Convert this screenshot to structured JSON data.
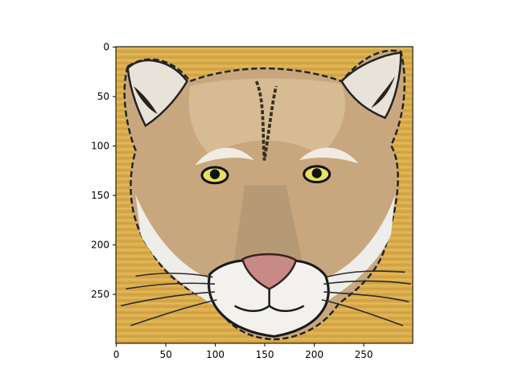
{
  "chart_data": {
    "type": "image",
    "subject": "cougar face",
    "xlim": [
      -0.5,
      299.5
    ],
    "ylim": [
      299.5,
      -0.5
    ],
    "x_ticks": [
      0,
      50,
      100,
      150,
      200,
      250
    ],
    "y_ticks": [
      0,
      50,
      100,
      150,
      200,
      250
    ],
    "x_tick_labels": [
      "0",
      "50",
      "100",
      "150",
      "200",
      "250"
    ],
    "y_tick_labels": [
      "0",
      "50",
      "100",
      "150",
      "200",
      "250"
    ],
    "title": "",
    "xlabel": "",
    "ylabel": ""
  },
  "colors": {
    "background_gold": "#d9ab4a",
    "fur_tan": "#c9a77e",
    "fur_light": "#dcc29c",
    "muzzle_white": "#f3f1ee",
    "nose_pink": "#c88a86",
    "eye_yellow": "#e8e060",
    "outline_black": "#111111"
  }
}
